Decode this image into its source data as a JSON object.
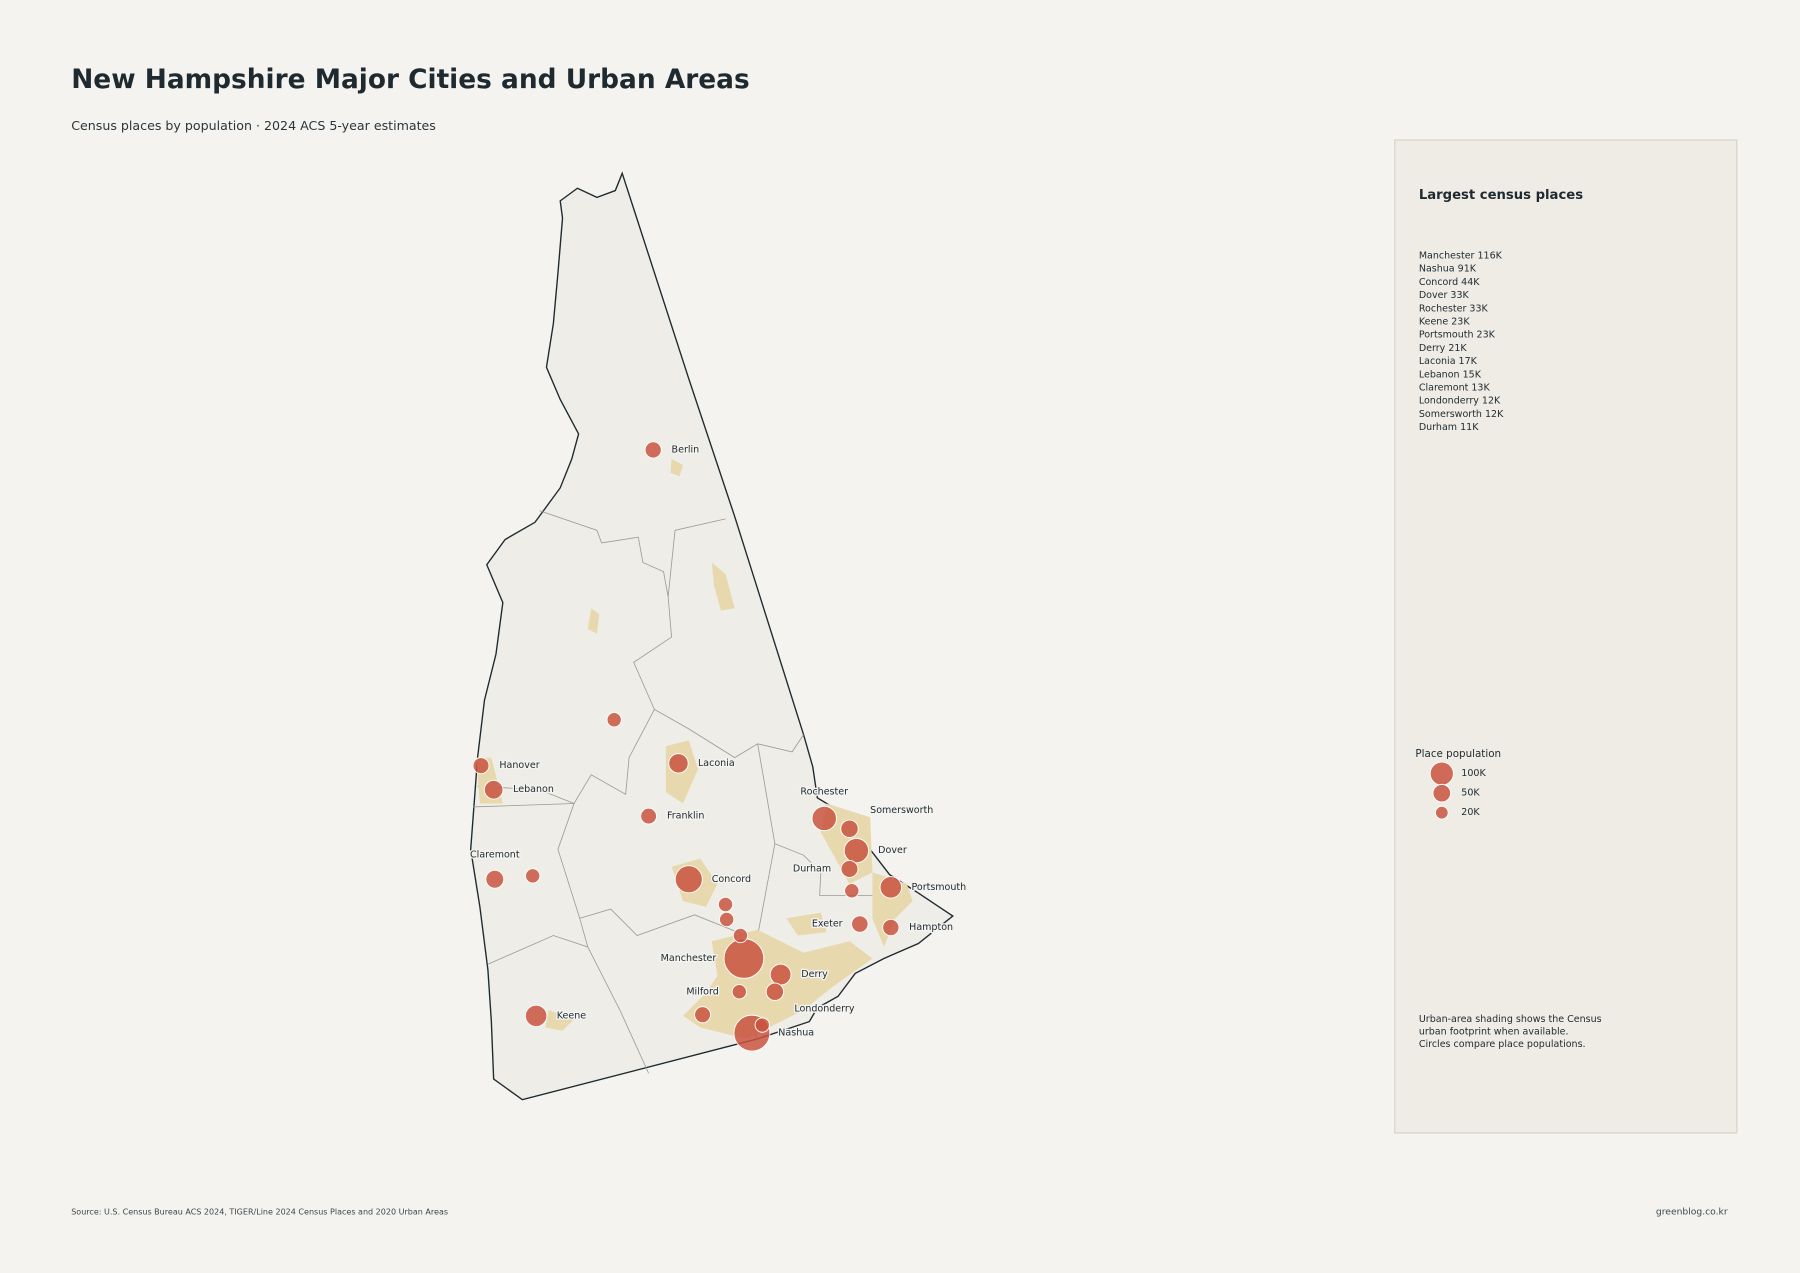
{
  "title": "New Hampshire Major Cities and Urban Areas",
  "subtitle": "Census places by population · 2024 ACS 5-year estimates",
  "places": [
    {
      "name": "Manchester",
      "population": 116000
    },
    {
      "name": "Nashua",
      "population": 91000
    },
    {
      "name": "Concord",
      "population": 44000
    },
    {
      "name": "Dover",
      "population": 33000
    },
    {
      "name": "Rochester",
      "population": 33000
    },
    {
      "name": "Keene",
      "population": 23000
    },
    {
      "name": "Portsmouth",
      "population": 23000
    },
    {
      "name": "Derry",
      "population": 21000
    },
    {
      "name": "Laconia",
      "population": 17000
    },
    {
      "name": "Lebanon",
      "population": 15000
    },
    {
      "name": "Claremont",
      "population": 13000
    },
    {
      "name": "Londonderry",
      "population": 12000
    },
    {
      "name": "Somersworth",
      "population": 12000
    },
    {
      "name": "Durham",
      "population": 11000
    },
    {
      "name": "Berlin",
      "population": 9400
    },
    {
      "name": "Hanover",
      "population": 9000
    },
    {
      "name": "Franklin",
      "population": 8700
    },
    {
      "name": "Exeter",
      "population": 10000
    },
    {
      "name": "Hampton",
      "population": 9600
    },
    {
      "name": "Milford",
      "population": 9000
    },
    {
      "name": null,
      "population": 6000
    },
    {
      "name": null,
      "population": 6000
    },
    {
      "name": null,
      "population": 6000
    },
    {
      "name": null,
      "population": 6000
    },
    {
      "name": null,
      "population": 6000
    },
    {
      "name": null,
      "population": 6000
    },
    {
      "name": null,
      "population": 6000
    },
    {
      "name": null,
      "population": 6000
    }
  ],
  "panel": {
    "heading": "Largest census places",
    "list": [
      "Manchester  116K",
      "Nashua  91K",
      "Concord  44K",
      "Dover  33K",
      "Rochester  33K",
      "Keene  23K",
      "Portsmouth  23K",
      "Derry  21K",
      "Laconia  17K",
      "Lebanon  15K",
      "Claremont  13K",
      "Londonderry  12K",
      "Somersworth  12K",
      "Durham  11K"
    ],
    "legend_title": "Place population",
    "legend_sizes": [
      {
        "value": 100000,
        "label": "100K"
      },
      {
        "value": 50000,
        "label": "50K"
      },
      {
        "value": 20000,
        "label": "20K"
      }
    ],
    "note": [
      "Urban-area shading shows the Census",
      "urban footprint when available.",
      "Circles compare place populations."
    ]
  },
  "source": "Source: U.S. Census Bureau ACS 2024, TIGER/Line 2024 Census Places and 2020 Urban Areas",
  "credit": "greenblog.co.kr"
}
